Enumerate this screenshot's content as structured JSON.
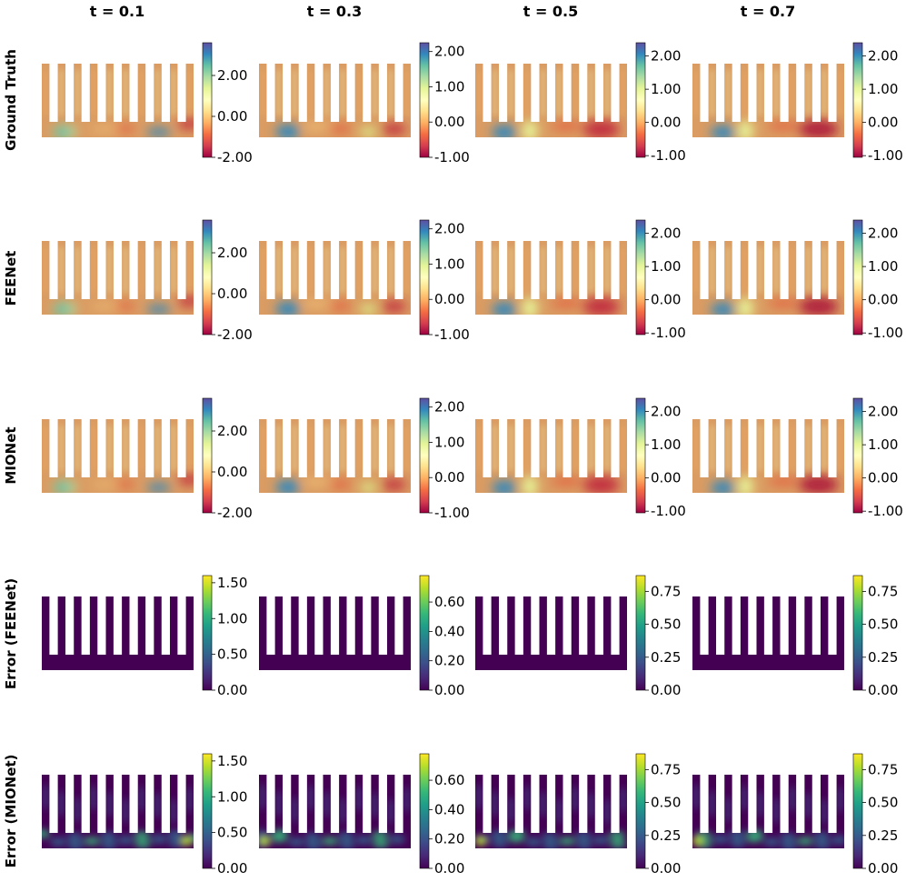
{
  "column_titles": [
    "t = 0.1",
    "t = 0.3",
    "t = 0.5",
    "t = 0.7"
  ],
  "row_labels": [
    "Ground Truth",
    "FEENet",
    "MIONet",
    "Error (FEENet)",
    "Error (MIONet)"
  ],
  "colormaps": {
    "spectral": [
      "#9e0142",
      "#d53e4f",
      "#f46d43",
      "#fdae61",
      "#fee08b",
      "#ffffbf",
      "#e6f598",
      "#abdda4",
      "#66c2a5",
      "#3288bd",
      "#5e4fa2"
    ],
    "viridis": [
      "#440154",
      "#482878",
      "#3e4a89",
      "#31688e",
      "#26828e",
      "#1f9e89",
      "#35b779",
      "#6ece58",
      "#b5de2b",
      "#fde725"
    ]
  },
  "chart_data": [
    {
      "type": "heatmap",
      "row": "Ground Truth",
      "title": "t = 0.1",
      "colormap": "spectral",
      "vlim": [
        -2.0,
        3.6
      ],
      "colorbar_ticks": [
        "-2.00",
        "0.00",
        "2.00"
      ]
    },
    {
      "type": "heatmap",
      "row": "Ground Truth",
      "title": "t = 0.3",
      "colormap": "spectral",
      "vlim": [
        -1.0,
        2.25
      ],
      "colorbar_ticks": [
        "-1.00",
        "0.00",
        "1.00",
        "2.00"
      ]
    },
    {
      "type": "heatmap",
      "row": "Ground Truth",
      "title": "t = 0.5",
      "colormap": "spectral",
      "vlim": [
        -1.05,
        2.4
      ],
      "colorbar_ticks": [
        "-1.00",
        "0.00",
        "1.00",
        "2.00"
      ]
    },
    {
      "type": "heatmap",
      "row": "Ground Truth",
      "title": "t = 0.7",
      "colormap": "spectral",
      "vlim": [
        -1.05,
        2.4
      ],
      "colorbar_ticks": [
        "-1.00",
        "0.00",
        "1.00",
        "2.00"
      ]
    },
    {
      "type": "heatmap",
      "row": "FEENet",
      "title": "t = 0.1",
      "colormap": "spectral",
      "vlim": [
        -2.0,
        3.6
      ],
      "colorbar_ticks": [
        "-2.00",
        "0.00",
        "2.00"
      ]
    },
    {
      "type": "heatmap",
      "row": "FEENet",
      "title": "t = 0.3",
      "colormap": "spectral",
      "vlim": [
        -1.0,
        2.25
      ],
      "colorbar_ticks": [
        "-1.00",
        "0.00",
        "1.00",
        "2.00"
      ]
    },
    {
      "type": "heatmap",
      "row": "FEENet",
      "title": "t = 0.5",
      "colormap": "spectral",
      "vlim": [
        -1.05,
        2.4
      ],
      "colorbar_ticks": [
        "-1.00",
        "0.00",
        "1.00",
        "2.00"
      ]
    },
    {
      "type": "heatmap",
      "row": "FEENet",
      "title": "t = 0.7",
      "colormap": "spectral",
      "vlim": [
        -1.05,
        2.4
      ],
      "colorbar_ticks": [
        "-1.00",
        "0.00",
        "1.00",
        "2.00"
      ]
    },
    {
      "type": "heatmap",
      "row": "MIONet",
      "title": "t = 0.1",
      "colormap": "spectral",
      "vlim": [
        -2.0,
        3.6
      ],
      "colorbar_ticks": [
        "-2.00",
        "0.00",
        "2.00"
      ]
    },
    {
      "type": "heatmap",
      "row": "MIONet",
      "title": "t = 0.3",
      "colormap": "spectral",
      "vlim": [
        -1.0,
        2.25
      ],
      "colorbar_ticks": [
        "-1.00",
        "0.00",
        "1.00",
        "2.00"
      ]
    },
    {
      "type": "heatmap",
      "row": "MIONet",
      "title": "t = 0.5",
      "colormap": "spectral",
      "vlim": [
        -1.05,
        2.4
      ],
      "colorbar_ticks": [
        "-1.00",
        "0.00",
        "1.00",
        "2.00"
      ]
    },
    {
      "type": "heatmap",
      "row": "MIONet",
      "title": "t = 0.7",
      "colormap": "spectral",
      "vlim": [
        -1.05,
        2.4
      ],
      "colorbar_ticks": [
        "-1.00",
        "0.00",
        "1.00",
        "2.00"
      ]
    },
    {
      "type": "heatmap",
      "row": "Error (FEENet)",
      "title": "t = 0.1",
      "colormap": "viridis",
      "vlim": [
        0,
        1.6
      ],
      "colorbar_ticks": [
        "0.00",
        "0.50",
        "1.00",
        "1.50"
      ]
    },
    {
      "type": "heatmap",
      "row": "Error (FEENet)",
      "title": "t = 0.3",
      "colormap": "viridis",
      "vlim": [
        0,
        0.78
      ],
      "colorbar_ticks": [
        "0.00",
        "0.20",
        "0.40",
        "0.60"
      ]
    },
    {
      "type": "heatmap",
      "row": "Error (FEENet)",
      "title": "t = 0.5",
      "colormap": "viridis",
      "vlim": [
        0,
        0.87
      ],
      "colorbar_ticks": [
        "0.00",
        "0.25",
        "0.50",
        "0.75"
      ]
    },
    {
      "type": "heatmap",
      "row": "Error (FEENet)",
      "title": "t = 0.7",
      "colormap": "viridis",
      "vlim": [
        0,
        0.87
      ],
      "colorbar_ticks": [
        "0.00",
        "0.25",
        "0.50",
        "0.75"
      ]
    },
    {
      "type": "heatmap",
      "row": "Error (MIONet)",
      "title": "t = 0.1",
      "colormap": "viridis",
      "vlim": [
        0,
        1.6
      ],
      "colorbar_ticks": [
        "0.00",
        "0.50",
        "1.00",
        "1.50"
      ]
    },
    {
      "type": "heatmap",
      "row": "Error (MIONet)",
      "title": "t = 0.3",
      "colormap": "viridis",
      "vlim": [
        0,
        0.78
      ],
      "colorbar_ticks": [
        "0.00",
        "0.20",
        "0.40",
        "0.60"
      ]
    },
    {
      "type": "heatmap",
      "row": "Error (MIONet)",
      "title": "t = 0.5",
      "colormap": "viridis",
      "vlim": [
        0,
        0.87
      ],
      "colorbar_ticks": [
        "0.00",
        "0.25",
        "0.50",
        "0.75"
      ]
    },
    {
      "type": "heatmap",
      "row": "Error (MIONet)",
      "title": "t = 0.7",
      "colormap": "viridis",
      "vlim": [
        0,
        0.87
      ],
      "colorbar_ticks": [
        "0.00",
        "0.25",
        "0.50",
        "0.75"
      ]
    }
  ]
}
